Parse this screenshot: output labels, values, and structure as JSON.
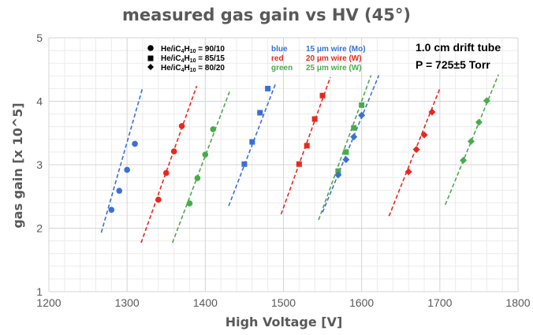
{
  "chart_data": {
    "type": "scatter",
    "title": "measured gas gain vs HV (45°)",
    "xlabel": "High Voltage [V]",
    "ylabel": "gas gain [x 10^5]",
    "xlim": [
      1200,
      1800
    ],
    "ylim": [
      1,
      5
    ],
    "x_ticks": [
      "1200",
      "1300",
      "1400",
      "1500",
      "1600",
      "1700",
      "1800"
    ],
    "y_ticks": [
      "1",
      "2",
      "3",
      "4",
      "5"
    ],
    "grid": true,
    "markers_legend": [
      {
        "marker": "circle",
        "gas": "He",
        "gas_mid": "/iC",
        "n1": "4",
        "gas_h": "H",
        "n2": "10",
        "ratio": " = 90/10"
      },
      {
        "marker": "square",
        "gas": "He",
        "gas_mid": "/iC",
        "n1": "4",
        "gas_h": "H",
        "n2": "10",
        "ratio": " = 85/15"
      },
      {
        "marker": "diamond",
        "gas": "He",
        "gas_mid": "/iC",
        "n1": "4",
        "gas_h": "H",
        "n2": "10",
        "ratio": " = 80/20"
      }
    ],
    "colors_legend": [
      {
        "color_name": "blue",
        "wire": "15 μm wire (Mo)",
        "color": "#3a6fd8"
      },
      {
        "color_name": "red",
        "wire": "20 μm wire (W)",
        "color": "#e8281e"
      },
      {
        "color_name": "green",
        "wire": "25 μm wire (W)",
        "color": "#4aaa4a"
      }
    ],
    "annotations": [
      "1.0 cm drift tube",
      "P = 725±5 Torr"
    ],
    "series": [
      {
        "color": "#3a6fd8",
        "marker": "circle",
        "x": [
          1280,
          1290,
          1300,
          1310
        ],
        "y": [
          2.29,
          2.59,
          2.92,
          3.33
        ],
        "fit": [
          [
            1267,
            1.93
          ],
          [
            1320,
            4.22
          ]
        ]
      },
      {
        "color": "#e8281e",
        "marker": "circle",
        "x": [
          1340,
          1350,
          1360,
          1370
        ],
        "y": [
          2.45,
          2.87,
          3.21,
          3.61
        ],
        "fit": [
          [
            1318,
            1.77
          ],
          [
            1389,
            4.24
          ]
        ]
      },
      {
        "color": "#4aaa4a",
        "marker": "circle",
        "x": [
          1380,
          1390,
          1400,
          1410
        ],
        "y": [
          2.39,
          2.79,
          3.16,
          3.56
        ],
        "fit": [
          [
            1358,
            1.77
          ],
          [
            1431,
            4.15
          ]
        ]
      },
      {
        "color": "#3a6fd8",
        "marker": "square",
        "x": [
          1450,
          1460,
          1470,
          1480
        ],
        "y": [
          3.01,
          3.36,
          3.82,
          4.2
        ],
        "fit": [
          [
            1430,
            2.35
          ],
          [
            1490,
            4.28
          ]
        ]
      },
      {
        "color": "#e8281e",
        "marker": "square",
        "x": [
          1520,
          1530,
          1540,
          1550
        ],
        "y": [
          3.01,
          3.3,
          3.72,
          4.09
        ],
        "fit": [
          [
            1497,
            2.22
          ],
          [
            1560,
            4.38
          ]
        ]
      },
      {
        "color": "#4aaa4a",
        "marker": "square",
        "x": [
          1570,
          1580,
          1590,
          1600
        ],
        "y": [
          2.9,
          3.2,
          3.58,
          3.94
        ],
        "fit": [
          [
            1545,
            2.13
          ],
          [
            1612,
            4.41
          ]
        ]
      },
      {
        "color": "#3a6fd8",
        "marker": "diamond",
        "x": [
          1570,
          1580,
          1590,
          1600
        ],
        "y": [
          2.84,
          3.08,
          3.44,
          3.78
        ],
        "fit": [
          [
            1550,
            2.25
          ],
          [
            1622,
            4.41
          ]
        ]
      },
      {
        "color": "#e8281e",
        "marker": "diamond",
        "x": [
          1660,
          1670,
          1680,
          1690
        ],
        "y": [
          2.89,
          3.24,
          3.47,
          3.83
        ],
        "fit": [
          [
            1635,
            2.19
          ],
          [
            1700,
            4.2
          ]
        ]
      },
      {
        "color": "#4aaa4a",
        "marker": "diamond",
        "x": [
          1730,
          1740,
          1750,
          1760
        ],
        "y": [
          3.07,
          3.37,
          3.67,
          4.01
        ],
        "fit": [
          [
            1707,
            2.37
          ],
          [
            1775,
            4.42
          ]
        ]
      }
    ]
  }
}
